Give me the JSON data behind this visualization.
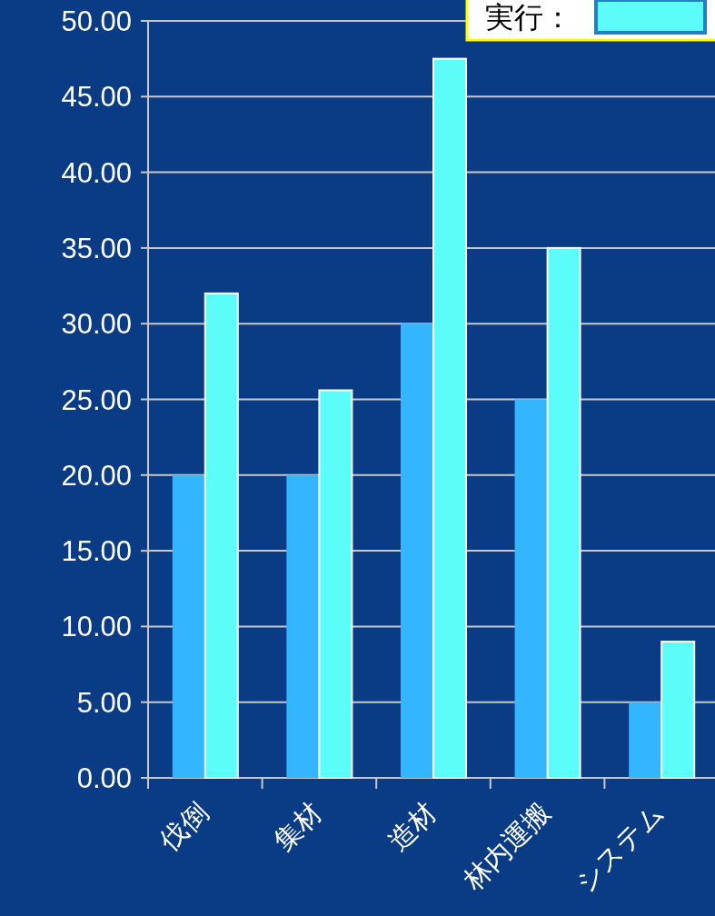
{
  "chart_data": {
    "type": "bar",
    "categories": [
      "伐倒",
      "集材",
      "造材",
      "林内運搬",
      "システム"
    ],
    "series": [
      {
        "color": "#33b5ff",
        "values": [
          20,
          20,
          30,
          25,
          5
        ]
      },
      {
        "name": "実行：",
        "color": "#5cfdf8",
        "values": [
          32,
          25.6,
          47.5,
          35,
          9
        ]
      }
    ],
    "ylim": [
      0,
      50
    ],
    "yticks": [
      {
        "value": 0,
        "label": "0.00"
      },
      {
        "value": 5,
        "label": "5.00"
      },
      {
        "value": 10,
        "label": "10.00"
      },
      {
        "value": 15,
        "label": "15.00"
      },
      {
        "value": 20,
        "label": "20.00"
      },
      {
        "value": 25,
        "label": "25.00"
      },
      {
        "value": 30,
        "label": "30.00"
      },
      {
        "value": 35,
        "label": "35.00"
      },
      {
        "value": 40,
        "label": "40.00"
      },
      {
        "value": 45,
        "label": "45.00"
      },
      {
        "value": 50,
        "label": "50.00"
      }
    ],
    "grid": "y",
    "legend": "top right"
  }
}
